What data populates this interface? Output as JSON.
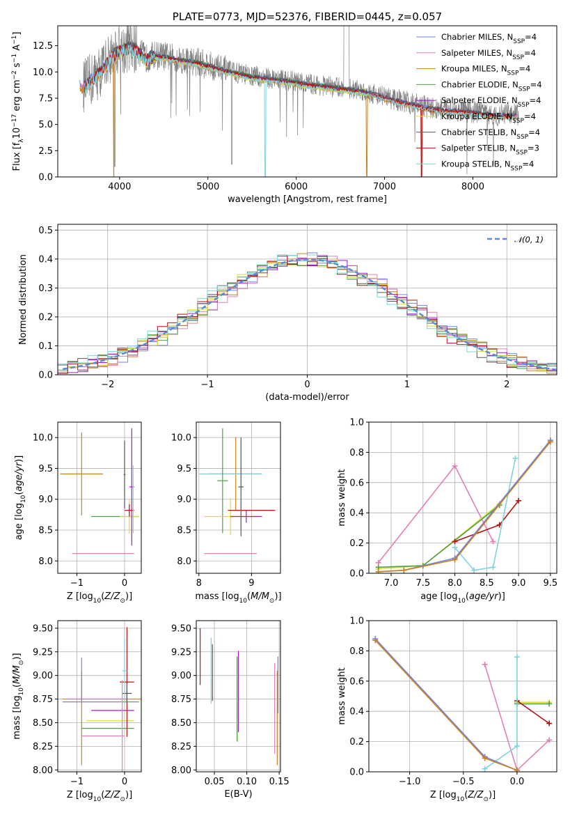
{
  "colors": {
    "Chabrier MILES": "#6d86e0",
    "Salpeter MILES": "#e37fb7",
    "Kroupa MILES": "#c9801e",
    "Chabrier ELODIE": "#4f9f4f",
    "Salpeter ELODIE": "#a817c9",
    "Kroupa ELODIE": "#dede2a",
    "Chabrier STELIB": "#555555",
    "Salpeter STELIB": "#b80f0f",
    "Kroupa STELIB": "#7fd3dd",
    "data": "#808080",
    "normal": "#5b8bd6"
  },
  "chart_data": [
    {
      "id": "spectrum",
      "type": "line",
      "title": "PLATE=0773, MJD=52376, FIBERID=0445, z=0.057",
      "xlabel": "wavelength [Angstrom, rest frame]",
      "ylabel": "Flux [fλ10⁻¹⁷ erg cm⁻² s⁻¹ A⁻¹]",
      "xlim": [
        3300,
        8950
      ],
      "ylim": [
        0,
        14.4
      ],
      "xticks": [
        4000,
        5000,
        6000,
        7000,
        8000
      ],
      "yticks": [
        0.0,
        2.5,
        5.0,
        7.5,
        10.0,
        12.5
      ],
      "grid": false,
      "legend_position": "top-right",
      "legend": [
        {
          "text": "Chabrier MILES, N",
          "sub": "SSP",
          "after": "=4"
        },
        {
          "text": "Salpeter MILES, N",
          "sub": "SSP",
          "after": "=4"
        },
        {
          "text": "Kroupa MILES, N",
          "sub": "SSP",
          "after": "=4"
        },
        {
          "text": "Chabrier ELODIE, N",
          "sub": "SSP",
          "after": "=4"
        },
        {
          "text": "Salpeter ELODIE, N",
          "sub": "SSP",
          "after": "=4"
        },
        {
          "text": "Kroupa ELODIE, N",
          "sub": "SSP",
          "after": "=4"
        },
        {
          "text": "Chabrier STELIB, N",
          "sub": "SSP",
          "after": "=4"
        },
        {
          "text": "Salpeter STELIB, N",
          "sub": "SSP",
          "after": "=3"
        },
        {
          "text": "Kroupa STELIB, N",
          "sub": "SSP",
          "after": "=4"
        }
      ],
      "continuum": {
        "x": [
          3600,
          3700,
          3800,
          3900,
          4000,
          4100,
          4200,
          4300,
          4400,
          4500,
          4700,
          4900,
          5100,
          5300,
          5500,
          5700,
          5900,
          6100,
          6300,
          6500,
          6700,
          6900,
          7100,
          7300,
          7500,
          7700,
          7900,
          8100,
          8300,
          8500
        ],
        "y": [
          8.7,
          9.4,
          10.2,
          11.5,
          12.1,
          12.4,
          12.1,
          11.3,
          11.6,
          11.5,
          11.2,
          10.9,
          10.4,
          10.0,
          9.6,
          9.4,
          9.2,
          8.9,
          8.7,
          8.5,
          8.3,
          7.9,
          7.4,
          7.0,
          6.6,
          6.4,
          6.3,
          6.1,
          5.9,
          5.9
        ]
      },
      "absorption_features": [
        {
          "x": 3934,
          "depth": 14.0,
          "series": "Kroupa MILES"
        },
        {
          "x": 5650,
          "depth": 10.0,
          "series": "Kroupa STELIB"
        },
        {
          "x": 6800,
          "depth": 8.0,
          "series": "Kroupa MILES"
        },
        {
          "x": 7420,
          "depth": 7.0,
          "series": "Salpeter STELIB"
        }
      ]
    },
    {
      "id": "residuals",
      "type": "histogram",
      "xlabel": "(data-model)/error",
      "ylabel": "Normed distribution",
      "xlim": [
        -2.5,
        2.5
      ],
      "ylim": [
        0,
        0.52
      ],
      "xticks": [
        -2,
        -1,
        0,
        1,
        2
      ],
      "yticks": [
        0.0,
        0.1,
        0.2,
        0.3,
        0.4,
        0.5
      ],
      "grid": true,
      "legend_position": "top-right",
      "legend_label": "𝒩(0, 1)",
      "bin_width": 0.1
    },
    {
      "id": "age-vs-Z",
      "type": "errorbar",
      "xlabel": "Z [log₁₀(Z/Z⊙)]",
      "ylabel": "age  [log₁₀(age/yr)]",
      "xlim": [
        -1.4,
        0.35
      ],
      "ylim": [
        7.8,
        10.25
      ],
      "xticks": [
        -1,
        0
      ],
      "yticks": [
        8.0,
        8.5,
        9.0,
        9.5,
        10.0
      ],
      "grid": true,
      "points": [
        {
          "series": "Kroupa MILES",
          "x": -0.9,
          "xerr": 0.45,
          "y": 9.41,
          "yerr": 0.67
        },
        {
          "series": "Salpeter MILES",
          "x": -0.45,
          "xerr": 0.65,
          "y": 8.12,
          "yerr": 0.0
        },
        {
          "series": "Chabrier ELODIE",
          "x": -0.2,
          "xerr": 0.5,
          "y": 8.72,
          "yerr": 0.0
        },
        {
          "series": "Kroupa ELODIE",
          "x": 0.1,
          "xerr": 0.2,
          "y": 8.72,
          "yerr": 0.28
        },
        {
          "series": "Salpeter ELODIE",
          "x": 0.15,
          "xerr": 0.05,
          "y": 9.2,
          "yerr": 0.95
        },
        {
          "series": "Salpeter STELIB",
          "x": 0.1,
          "xerr": 0.1,
          "y": 8.82,
          "yerr": 0.1
        },
        {
          "series": "Chabrier STELIB",
          "x": 0.0,
          "xerr": 0.02,
          "y": 9.4,
          "yerr": 0.55
        },
        {
          "series": "Kroupa STELIB",
          "x": 0.18,
          "xerr": 0.02,
          "y": 9.0,
          "yerr": 0.55
        }
      ]
    },
    {
      "id": "age-vs-mass",
      "type": "errorbar",
      "xlabel": "mass [log₁₀(M/M⊙)]",
      "ylabel": "",
      "xlim": [
        7.95,
        9.55
      ],
      "ylim": [
        7.8,
        10.25
      ],
      "xticks": [
        8,
        9
      ],
      "yticks": [
        8.0,
        8.5,
        9.0,
        9.5,
        10.0
      ],
      "grid": true,
      "points": [
        {
          "series": "Kroupa MILES",
          "x": 8.7,
          "xerr": 0.5,
          "y": 9.41,
          "yerr": 0.6
        },
        {
          "series": "Kroupa STELIB",
          "x": 8.6,
          "xerr": 0.6,
          "y": 9.41,
          "yerr": 0.0
        },
        {
          "series": "Salpeter MILES",
          "x": 8.6,
          "xerr": 0.5,
          "y": 8.12,
          "yerr": 0.0
        },
        {
          "series": "Chabrier ELODIE",
          "x": 8.45,
          "xerr": 0.1,
          "y": 9.3,
          "yerr": 0.85
        },
        {
          "series": "Kroupa ELODIE",
          "x": 8.6,
          "xerr": 0.5,
          "y": 8.72,
          "yerr": 0.3
        },
        {
          "series": "Salpeter ELODIE",
          "x": 8.9,
          "xerr": 0.3,
          "y": 8.72,
          "yerr": 0.1
        },
        {
          "series": "Salpeter STELIB",
          "x": 9.0,
          "xerr": 0.45,
          "y": 8.82,
          "yerr": 0.0
        },
        {
          "series": "Chabrier STELIB",
          "x": 8.8,
          "xerr": 0.05,
          "y": 9.2,
          "yerr": 0.8
        }
      ]
    },
    {
      "id": "weight-vs-age",
      "type": "line",
      "xlabel": "age  [log₁₀(age/yr)]",
      "ylabel": "mass weight",
      "xlim": [
        6.65,
        9.6
      ],
      "ylim": [
        0,
        1.0
      ],
      "xticks": [
        7.0,
        7.5,
        8.0,
        8.5,
        9.0,
        9.5
      ],
      "yticks": [
        0.0,
        0.2,
        0.4,
        0.6,
        0.8,
        1.0
      ],
      "grid": true,
      "series": [
        {
          "name": "Salpeter MILES",
          "x": [
            6.8,
            8.0,
            8.6
          ],
          "y": [
            0.07,
            0.71,
            0.21
          ]
        },
        {
          "name": "Kroupa ELODIE",
          "x": [
            6.8,
            7.5,
            8.7
          ],
          "y": [
            0.03,
            0.05,
            0.46
          ]
        },
        {
          "name": "Chabrier ELODIE",
          "x": [
            6.8,
            7.5,
            8.7
          ],
          "y": [
            0.04,
            0.05,
            0.45
          ]
        },
        {
          "name": "Salpeter STELIB",
          "x": [
            8.0,
            8.7,
            9.0
          ],
          "y": [
            0.21,
            0.32,
            0.48
          ]
        },
        {
          "name": "Kroupa STELIB",
          "x": [
            8.0,
            8.3,
            8.6,
            8.95
          ],
          "y": [
            0.17,
            0.02,
            0.04,
            0.76
          ]
        },
        {
          "name": "Chabrier MILES",
          "x": [
            6.8,
            7.2,
            8.0,
            9.5
          ],
          "y": [
            0.01,
            0.02,
            0.1,
            0.88
          ]
        },
        {
          "name": "Kroupa MILES",
          "x": [
            6.8,
            7.2,
            8.0,
            9.5
          ],
          "y": [
            0.01,
            0.02,
            0.09,
            0.87
          ]
        }
      ]
    },
    {
      "id": "mass-vs-Z",
      "type": "errorbar",
      "xlabel": "Z [log₁₀(Z/Z⊙)]",
      "ylabel": "mass [log₁₀(M/M⊙)]",
      "xlim": [
        -1.4,
        0.35
      ],
      "ylim": [
        7.98,
        9.58
      ],
      "xticks": [
        -1,
        0
      ],
      "yticks": [
        8.0,
        8.25,
        8.5,
        8.75,
        9.0,
        9.25,
        9.5
      ],
      "grid": true,
      "points": [
        {
          "series": "Chabrier MILES",
          "x": -0.5,
          "xerr": 0.8,
          "y": 8.72,
          "yerr": 0.0
        },
        {
          "series": "Kroupa MILES",
          "x": -0.45,
          "xerr": 0.85,
          "y": 8.75,
          "yerr": 0.0
        },
        {
          "series": "Salpeter MILES",
          "x": -0.45,
          "xerr": 0.45,
          "y": 8.36,
          "yerr": 0.0
        },
        {
          "series": "Chabrier ELODIE",
          "x": -0.35,
          "xerr": 0.55,
          "y": 8.44,
          "yerr": 0.0
        },
        {
          "series": "Kroupa ELODIE",
          "x": -0.3,
          "xerr": 0.5,
          "y": 8.52,
          "yerr": 0.0
        },
        {
          "series": "Salpeter ELODIE",
          "x": -0.25,
          "xerr": 0.45,
          "y": 8.63,
          "yerr": 0.0
        },
        {
          "series": "Kroupa MILES",
          "x": -0.9,
          "xerr": 0.0,
          "y": 8.55,
          "yerr": 0.5
        },
        {
          "series": "Chabrier MILES",
          "x": -0.9,
          "xerr": 0.0,
          "y": 8.96,
          "yerr": 0.23
        },
        {
          "series": "Salpeter STELIB",
          "x": 0.05,
          "xerr": 0.15,
          "y": 8.93,
          "yerr": 0.58
        },
        {
          "series": "Chabrier STELIB",
          "x": 0.05,
          "xerr": 0.1,
          "y": 8.81,
          "yerr": 0.1
        },
        {
          "series": "Kroupa STELIB",
          "x": 0.0,
          "xerr": 0.05,
          "y": 9.05,
          "yerr": 0.35
        },
        {
          "series": "Salpeter MILES",
          "x": -0.05,
          "xerr": 0.0,
          "y": 8.45,
          "yerr": 0.5
        }
      ]
    },
    {
      "id": "mass-vs-ebv",
      "type": "errorbar",
      "xlabel": "E(B-V)",
      "ylabel": "",
      "xlim": [
        0.022,
        0.152
      ],
      "ylim": [
        7.98,
        9.58
      ],
      "xticks": [
        0.05,
        0.1,
        0.15
      ],
      "yticks": [
        8.0,
        8.25,
        8.5,
        8.75,
        9.0,
        9.25,
        9.5
      ],
      "grid": true,
      "points": [
        {
          "series": "Salpeter STELIB",
          "x": 0.028,
          "xerr": 0.0,
          "y": 9.2,
          "yerr": 0.3
        },
        {
          "series": "Chabrier STELIB",
          "x": 0.047,
          "xerr": 0.0,
          "y": 9.03,
          "yerr": 0.3
        },
        {
          "series": "Kroupa STELIB",
          "x": 0.045,
          "xerr": 0.0,
          "y": 9.05,
          "yerr": 0.35
        },
        {
          "series": "Chabrier ELODIE",
          "x": 0.085,
          "xerr": 0.0,
          "y": 8.75,
          "yerr": 0.45
        },
        {
          "series": "Kroupa ELODIE",
          "x": 0.086,
          "xerr": 0.0,
          "y": 8.75,
          "yerr": 0.45
        },
        {
          "series": "Salpeter ELODIE",
          "x": 0.087,
          "xerr": 0.0,
          "y": 8.83,
          "yerr": 0.43
        },
        {
          "series": "Salpeter MILES",
          "x": 0.143,
          "xerr": 0.0,
          "y": 8.65,
          "yerr": 0.48
        },
        {
          "series": "Kroupa MILES",
          "x": 0.147,
          "xerr": 0.0,
          "y": 8.55,
          "yerr": 0.5
        },
        {
          "series": "Chabrier MILES",
          "x": 0.148,
          "xerr": 0.0,
          "y": 8.9,
          "yerr": 0.3
        }
      ]
    },
    {
      "id": "weight-vs-Z",
      "type": "line",
      "xlabel": "Z [log₁₀(Z/Z⊙)]",
      "ylabel": "mass weight",
      "xlim": [
        -1.38,
        0.37
      ],
      "ylim": [
        0,
        1.0
      ],
      "xticks": [
        -1.0,
        -0.5,
        0.0
      ],
      "yticks": [
        0.0,
        0.2,
        0.4,
        0.6,
        0.8,
        1.0
      ],
      "grid": true,
      "series": [
        {
          "name": "Salpeter MILES",
          "x": [
            -0.3,
            0.0,
            0.3
          ],
          "y": [
            0.71,
            0.01,
            0.21
          ]
        },
        {
          "name": "Kroupa ELODIE",
          "x": [
            0.0,
            0.3
          ],
          "y": [
            0.46,
            0.46
          ]
        },
        {
          "name": "Chabrier ELODIE",
          "x": [
            0.0,
            0.3
          ],
          "y": [
            0.45,
            0.45
          ]
        },
        {
          "name": "Salpeter STELIB",
          "x": [
            0.0,
            0.3
          ],
          "y": [
            0.47,
            0.32
          ]
        },
        {
          "name": "Kroupa STELIB",
          "x": [
            -0.3,
            0.0,
            0.0
          ],
          "y": [
            0.02,
            0.17,
            0.76
          ]
        },
        {
          "name": "Chabrier MILES",
          "x": [
            -1.32,
            -0.3,
            0.0
          ],
          "y": [
            0.88,
            0.1,
            0.01
          ]
        },
        {
          "name": "Kroupa MILES",
          "x": [
            -1.32,
            -0.3,
            0.0
          ],
          "y": [
            0.87,
            0.09,
            0.01
          ]
        }
      ]
    }
  ]
}
